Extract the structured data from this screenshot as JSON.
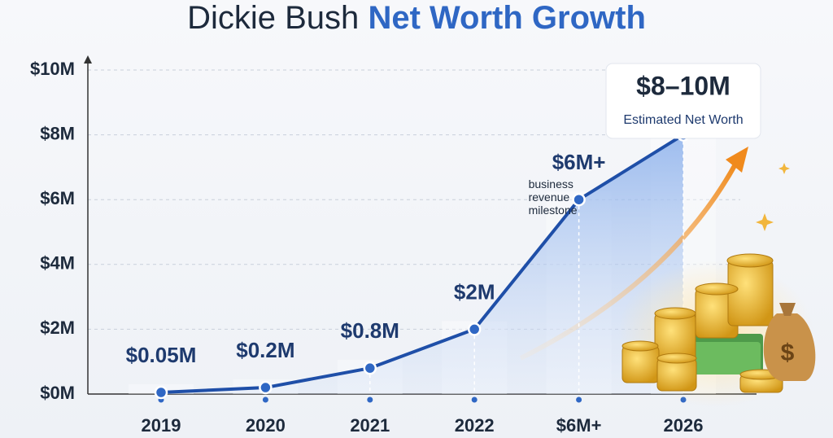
{
  "chart_data": {
    "type": "line",
    "title": "Dickie Bush",
    "title_highlight": "Net Worth Growth",
    "categories": [
      "2019",
      "2020",
      "2021",
      "2022",
      "$6M+",
      "2026"
    ],
    "values": [
      0.05,
      0.2,
      0.8,
      2,
      6,
      8
    ],
    "value_labels": [
      "$0.05M",
      "$0.2M",
      "$0.8M",
      "$2M",
      "$6M+",
      "$8–10M"
    ],
    "callout_caption": "Estimated Net Worth",
    "annotation": [
      "business",
      "revenue",
      "milestone"
    ],
    "color": "#1f4fa8",
    "ylim": [
      0,
      10
    ],
    "yticks": [
      {
        "value": 0,
        "label": "$0M"
      },
      {
        "value": 2,
        "label": "$2M"
      },
      {
        "value": 4,
        "label": "$4M"
      },
      {
        "value": 6,
        "label": "$6M"
      },
      {
        "value": 8,
        "label": "$8M"
      },
      {
        "value": 10,
        "label": "$10M"
      }
    ],
    "grid": true
  }
}
